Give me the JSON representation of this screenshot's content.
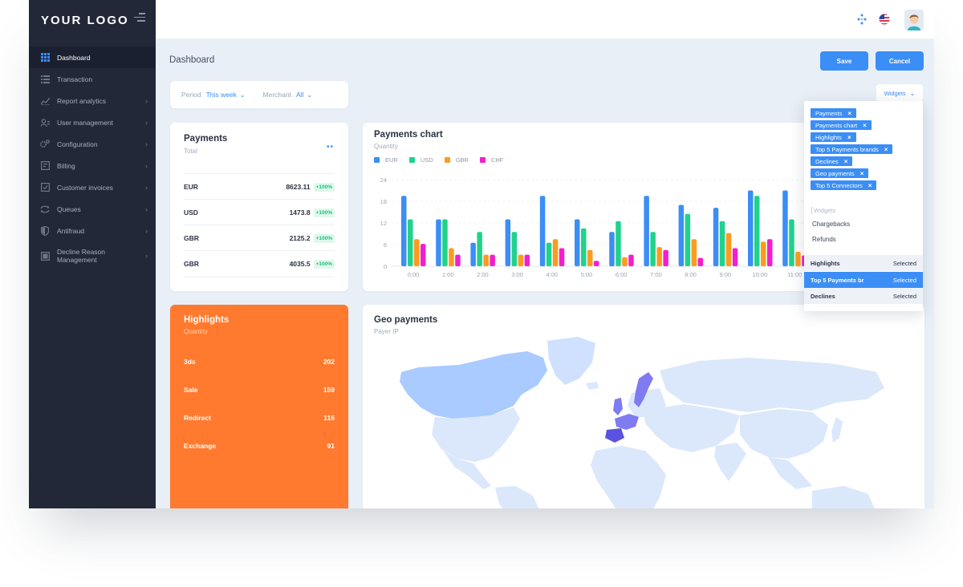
{
  "brand": {
    "logo": "YOUR LOGO"
  },
  "sidebar": {
    "items": [
      {
        "label": "Dashboard",
        "icon": "grid-icon"
      },
      {
        "label": "Transaction",
        "icon": "list-icon"
      },
      {
        "label": "Report analytics",
        "icon": "chart-line-icon"
      },
      {
        "label": "User management",
        "icon": "users-icon"
      },
      {
        "label": "Configuration",
        "icon": "cogs-icon"
      },
      {
        "label": "Billing",
        "icon": "billing-icon"
      },
      {
        "label": "Customer invoices",
        "icon": "invoice-icon"
      },
      {
        "label": "Queues",
        "icon": "sync-icon"
      },
      {
        "label": "Antifraud",
        "icon": "shield-icon"
      },
      {
        "label": "Decline Reason Management",
        "icon": "decline-icon"
      }
    ]
  },
  "header": {
    "title": "Dashboard",
    "save_label": "Save",
    "cancel_label": "Cancel"
  },
  "filters": {
    "period_label": "Period",
    "period_value": "This week",
    "merchant_label": "Merchant",
    "merchant_value": "All"
  },
  "payments": {
    "title": "Payments",
    "subtitle": "Total",
    "rows": [
      {
        "currency": "EUR",
        "amount": "8623.11",
        "change": "+100%"
      },
      {
        "currency": "USD",
        "amount": "1473.8",
        "change": "+100%"
      },
      {
        "currency": "GBR",
        "amount": "2125.2",
        "change": "+100%"
      },
      {
        "currency": "GBR",
        "amount": "4035.5",
        "change": "+100%"
      }
    ]
  },
  "payments_chart": {
    "title": "Payments chart",
    "subtitle": "Quantity"
  },
  "chart_data": {
    "type": "bar",
    "categories": [
      "0:00",
      "1:00",
      "2:00",
      "3:00",
      "4:00",
      "5:00",
      "6:00",
      "7:00",
      "8:00",
      "9:00",
      "10:00",
      "11:00"
    ],
    "series": [
      {
        "name": "EUR",
        "color": "#3b8ef5",
        "values": [
          19.5,
          13,
          6.5,
          13,
          19.5,
          13,
          9.5,
          19.5,
          17,
          16.2,
          21,
          21
        ]
      },
      {
        "name": "USD",
        "color": "#1fd38a",
        "values": [
          13,
          13,
          9.5,
          9.5,
          6.5,
          10.5,
          12.5,
          9.5,
          14.5,
          12.5,
          19.5,
          13
        ]
      },
      {
        "name": "GBR",
        "color": "#ff9a1f",
        "values": [
          7.5,
          5,
          3.2,
          3.2,
          7.5,
          4.5,
          2.5,
          5.3,
          7.5,
          9.2,
          6.8,
          4
        ]
      },
      {
        "name": "CHF",
        "color": "#f21fce",
        "values": [
          6.2,
          3.2,
          3.2,
          3.2,
          5,
          1.5,
          3.2,
          4.5,
          2.3,
          5,
          7.5,
          3
        ]
      }
    ],
    "yticks": [
      0,
      6,
      12,
      18,
      24
    ],
    "ylim": [
      0,
      24
    ],
    "grid": true,
    "legend": "top-left"
  },
  "highlights": {
    "title": "Highlights",
    "subtitle": "Quantity",
    "rows": [
      {
        "label": "3ds",
        "value": "202"
      },
      {
        "label": "Sale",
        "value": "159"
      },
      {
        "label": "Redirect",
        "value": "116"
      },
      {
        "label": "Exchange",
        "value": "91"
      }
    ]
  },
  "geo": {
    "title": "Geo payments",
    "subtitle": "Payer IP"
  },
  "widgets": {
    "button_label": "Widgets",
    "tags": [
      "Payments",
      "Payments chart",
      "Highlights",
      "Top 5 Payments brands",
      "Declines",
      "Geo payments",
      "Top 5 Connectors"
    ],
    "input_placeholder": "Widgets",
    "options": [
      "Chargebacks",
      "Refunds"
    ],
    "selected": [
      {
        "name": "Highlights",
        "status": "Selected"
      },
      {
        "name": "Top 5 Payments br",
        "status": "Selected"
      },
      {
        "name": "Declines",
        "status": "Selected"
      }
    ]
  },
  "colors": {
    "accent": "#3b8ef5",
    "sidebar": "#222838",
    "highlight": "#ff7a2e",
    "positive": "#1fbf7a"
  }
}
